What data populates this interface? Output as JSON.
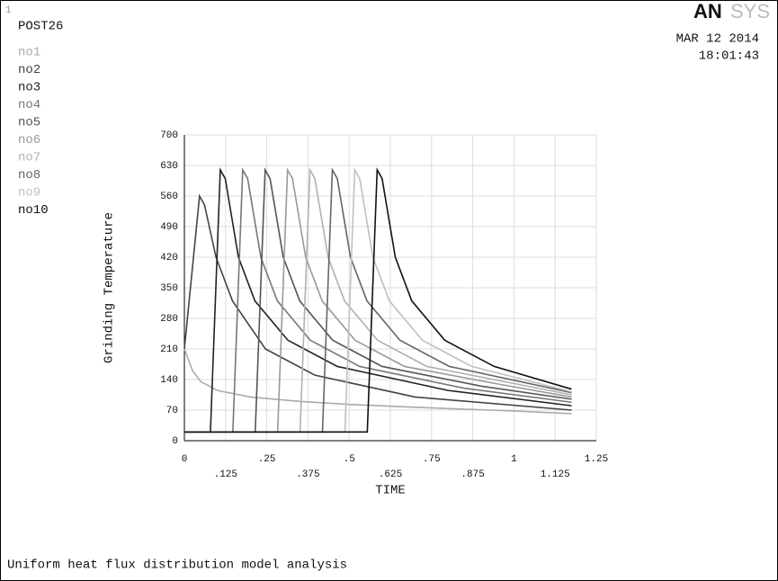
{
  "window_number": "1",
  "program": "POST26",
  "brand": {
    "bold": "AN",
    "light": "SYS"
  },
  "date": "MAR 12 2014",
  "time": "18:01:43",
  "footer": "Uniform heat flux distribution model analysis",
  "chart_data": {
    "type": "line",
    "xlabel": "TIME",
    "ylabel": "Grinding Temperature",
    "xlim": [
      0,
      1.25
    ],
    "ylim": [
      0,
      700
    ],
    "xticks": [
      0,
      {
        "value": 0.125,
        "label": ".125"
      },
      {
        "value": 0.25,
        "label": ".25"
      },
      {
        "value": 0.375,
        "label": ".375"
      },
      {
        "value": 0.5,
        "label": ".5"
      },
      {
        "value": 0.625,
        "label": ".625"
      },
      {
        "value": 0.75,
        "label": ".75"
      },
      {
        "value": 0.875,
        "label": ".875"
      },
      1,
      {
        "value": 1.125,
        "label": "1.125"
      },
      {
        "value": 1.25,
        "label": "1.25"
      }
    ],
    "yticks": [
      0,
      70,
      140,
      210,
      280,
      350,
      420,
      490,
      560,
      630,
      700
    ],
    "grid": true,
    "series": [
      {
        "name": "no1",
        "color": "#aaaaaa",
        "x": [
          0,
          0.025,
          0.05,
          0.1,
          0.2,
          0.35,
          0.5,
          0.75,
          1.0,
          1.175
        ],
        "values": [
          210,
          160,
          135,
          115,
          100,
          90,
          83,
          75,
          68,
          62
        ]
      },
      {
        "name": "no2",
        "color": "#444444",
        "x": [
          0,
          0.046,
          0.061,
          0.096,
          0.146,
          0.246,
          0.396,
          0.7,
          1.175
        ],
        "values": [
          210,
          560,
          540,
          420,
          320,
          210,
          150,
          100,
          70
        ]
      },
      {
        "name": "no3",
        "color": "#222222",
        "x": [
          0,
          0.079,
          0.109,
          0.124,
          0.164,
          0.214,
          0.314,
          0.464,
          0.8,
          1.175
        ],
        "values": [
          20,
          20,
          620,
          600,
          420,
          320,
          230,
          170,
          115,
          80
        ]
      },
      {
        "name": "no4",
        "color": "#777777",
        "x": [
          0,
          0.147,
          0.177,
          0.192,
          0.232,
          0.282,
          0.382,
          0.532,
          0.85,
          1.175
        ],
        "values": [
          20,
          20,
          620,
          600,
          420,
          320,
          230,
          170,
          120,
          88
        ]
      },
      {
        "name": "no5",
        "color": "#555555",
        "x": [
          0,
          0.215,
          0.245,
          0.26,
          0.3,
          0.35,
          0.45,
          0.6,
          0.9,
          1.175
        ],
        "values": [
          20,
          20,
          620,
          600,
          420,
          320,
          230,
          170,
          125,
          95
        ]
      },
      {
        "name": "no6",
        "color": "#999999",
        "x": [
          0,
          0.283,
          0.313,
          0.328,
          0.368,
          0.418,
          0.518,
          0.668,
          0.95,
          1.175
        ],
        "values": [
          20,
          20,
          620,
          600,
          420,
          320,
          230,
          170,
          130,
          100
        ]
      },
      {
        "name": "no7",
        "color": "#b0b0b0",
        "x": [
          0,
          0.351,
          0.381,
          0.396,
          0.436,
          0.486,
          0.586,
          0.736,
          1.175
        ],
        "values": [
          20,
          20,
          620,
          600,
          420,
          320,
          230,
          170,
          105
        ]
      },
      {
        "name": "no8",
        "color": "#666666",
        "x": [
          0,
          0.419,
          0.449,
          0.464,
          0.504,
          0.554,
          0.654,
          0.804,
          1.175
        ],
        "values": [
          20,
          20,
          620,
          600,
          420,
          320,
          230,
          170,
          110
        ]
      },
      {
        "name": "no9",
        "color": "#c0c0c0",
        "x": [
          0,
          0.487,
          0.517,
          0.532,
          0.572,
          0.622,
          0.722,
          0.872,
          1.175
        ],
        "values": [
          20,
          20,
          620,
          600,
          420,
          320,
          230,
          170,
          112
        ]
      },
      {
        "name": "no10",
        "color": "#111111",
        "x": [
          0,
          0.555,
          0.585,
          0.6,
          0.64,
          0.69,
          0.79,
          0.94,
          1.175
        ],
        "values": [
          20,
          20,
          620,
          600,
          420,
          320,
          230,
          170,
          118
        ]
      }
    ]
  }
}
